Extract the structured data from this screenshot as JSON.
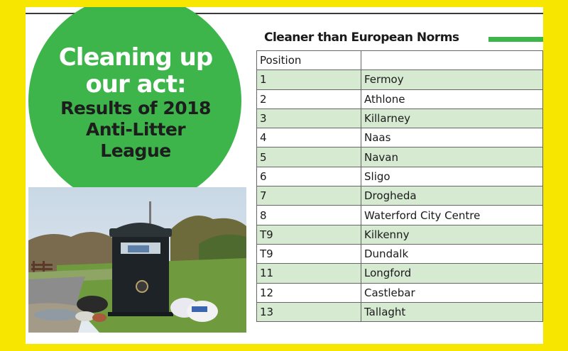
{
  "headline": {
    "line1": "Cleaning up",
    "line2": "our act:",
    "line3": "Results of 2018",
    "line4": "Anti-Litter",
    "line5": "League"
  },
  "table": {
    "title": "Cleaner than European Norms",
    "header": {
      "position": "Position",
      "town": ""
    },
    "rows": [
      {
        "position": "1",
        "town": "Fermoy"
      },
      {
        "position": "2",
        "town": "Athlone"
      },
      {
        "position": "3",
        "town": "Killarney"
      },
      {
        "position": "4",
        "town": "Naas"
      },
      {
        "position": "5",
        "town": "Navan"
      },
      {
        "position": "6",
        "town": "Sligo"
      },
      {
        "position": "7",
        "town": "Drogheda"
      },
      {
        "position": "8",
        "town": "Waterford City Centre"
      },
      {
        "position": "T9",
        "town": "Kilkenny"
      },
      {
        "position": "T9",
        "town": "Dundalk"
      },
      {
        "position": "11",
        "town": "Longford"
      },
      {
        "position": "12",
        "town": "Castlebar"
      },
      {
        "position": "13",
        "town": "Tallaght"
      }
    ]
  },
  "colors": {
    "frame": "#f7e600",
    "accent_green": "#3db54a",
    "row_tint": "#d6ead2"
  },
  "icons": {
    "photo": "litter-bin-photo-illustration"
  }
}
